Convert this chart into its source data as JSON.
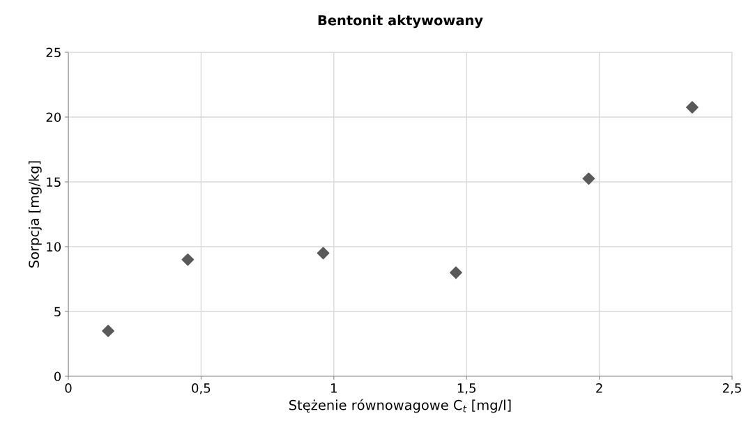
{
  "chart_data": {
    "type": "scatter",
    "title": "Bentonit aktywowany",
    "xlabel": "Stężenie równowagowe C$_{t}$ [mg/l]",
    "ylabel": "Sorpcja [mg/kg]",
    "x": [
      0.15,
      0.45,
      0.96,
      1.46,
      1.96,
      2.35
    ],
    "series": [
      {
        "color": "#595959",
        "values": [
          3.5,
          9.0,
          9.5,
          8.0,
          15.25,
          20.75
        ]
      }
    ],
    "xlim": [
      0,
      2.5
    ],
    "xticks": [
      0,
      {
        "value": 0.5,
        "label": "0,5"
      },
      1,
      {
        "value": 1.5,
        "label": "1,5"
      },
      2,
      {
        "value": 2.5,
        "label": "2,5"
      }
    ],
    "ylim": [
      0,
      25
    ],
    "yticks": [
      0,
      5,
      10,
      15,
      20,
      25
    ],
    "grid": true,
    "marker": "diamond"
  }
}
